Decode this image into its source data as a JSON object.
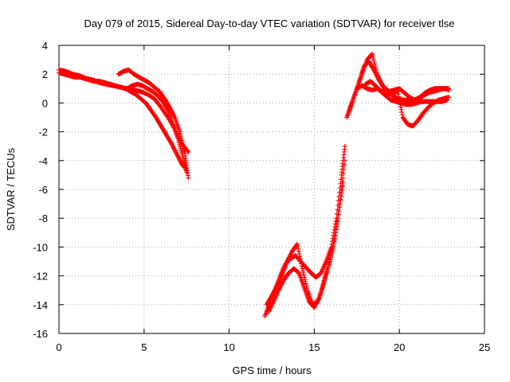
{
  "chart_data": {
    "type": "scatter",
    "title": "Day 079 of 2015, Sidereal Day-to-day VTEC variation (SDTVAR) for receiver tlse",
    "xlabel": "GPS time / hours",
    "ylabel": "SDTVAR / TECUs",
    "xlim": [
      0,
      25
    ],
    "ylim": [
      -16,
      4
    ],
    "xticks": [
      "0",
      "5",
      "10",
      "15",
      "20",
      "25"
    ],
    "yticks": [
      "4",
      "2",
      "0",
      "-2",
      "-4",
      "-6",
      "-8",
      "-10",
      "-12",
      "-14",
      "-16"
    ],
    "grid": true,
    "marker": "+",
    "color": "#ff0000",
    "series": [
      {
        "x": [
          0.0,
          0.3,
          0.6,
          0.9,
          1.2,
          1.5,
          1.8,
          2.1,
          2.4,
          2.7,
          3.0,
          3.3,
          3.6,
          3.9,
          4.2,
          4.5,
          4.8,
          5.1,
          5.4,
          5.7,
          6.0,
          6.3,
          6.6,
          6.9,
          7.2,
          7.4
        ],
        "y": [
          2.1,
          2.0,
          1.9,
          1.8,
          1.8,
          1.7,
          1.6,
          1.5,
          1.5,
          1.4,
          1.3,
          1.2,
          1.1,
          1.0,
          0.8,
          0.6,
          0.3,
          0.0,
          -0.5,
          -1.0,
          -1.6,
          -2.2,
          -2.8,
          -3.5,
          -4.2,
          -4.5
        ]
      },
      {
        "x": [
          0.0,
          0.4,
          0.8,
          1.2,
          1.6,
          2.0,
          2.4,
          2.8,
          3.2,
          3.6,
          4.0,
          4.4,
          4.8,
          5.2,
          5.6,
          6.0,
          6.4,
          6.8,
          7.2,
          7.6
        ],
        "y": [
          2.3,
          2.2,
          2.0,
          1.9,
          1.7,
          1.6,
          1.4,
          1.3,
          1.2,
          1.1,
          1.0,
          0.9,
          0.8,
          0.6,
          0.3,
          -0.3,
          -1.0,
          -1.8,
          -2.8,
          -3.4
        ]
      },
      {
        "x": [
          3.5,
          3.8,
          4.1,
          4.4,
          4.7,
          5.0,
          5.3,
          5.6,
          5.9,
          6.2,
          6.5,
          6.8,
          7.1,
          7.4,
          7.6
        ],
        "y": [
          2.0,
          2.2,
          2.3,
          2.0,
          1.8,
          1.6,
          1.4,
          1.1,
          0.8,
          0.3,
          -0.3,
          -1.0,
          -2.0,
          -3.5,
          -5.2
        ]
      },
      {
        "x": [
          4.0,
          4.3,
          4.6,
          4.9,
          5.2,
          5.5,
          5.8,
          6.1,
          6.4,
          6.7,
          7.0,
          7.3,
          7.5
        ],
        "y": [
          1.0,
          1.2,
          1.3,
          1.2,
          1.0,
          0.8,
          0.5,
          0.1,
          -0.5,
          -1.5,
          -2.5,
          -3.8,
          -4.8
        ]
      },
      {
        "x": [
          12.1,
          12.4,
          12.7,
          13.0,
          13.3,
          13.6,
          13.9,
          14.2,
          14.5,
          14.8,
          15.1,
          15.4,
          15.7,
          16.0,
          16.3,
          16.6,
          16.8
        ],
        "y": [
          -14.8,
          -13.8,
          -13.0,
          -12.0,
          -11.2,
          -10.8,
          -10.6,
          -11.0,
          -11.4,
          -11.8,
          -12.1,
          -11.8,
          -11.0,
          -10.0,
          -8.0,
          -5.0,
          -3.0
        ]
      },
      {
        "x": [
          12.2,
          12.5,
          12.8,
          13.1,
          13.4,
          13.7,
          14.0,
          14.3,
          14.6,
          14.9,
          15.2,
          15.5,
          15.8,
          16.1,
          16.4,
          16.7
        ],
        "y": [
          -14.0,
          -13.4,
          -12.7,
          -12.0,
          -11.0,
          -10.3,
          -9.8,
          -11.5,
          -13.0,
          -14.0,
          -13.8,
          -12.8,
          -11.5,
          -10.0,
          -8.0,
          -5.5
        ]
      },
      {
        "x": [
          12.3,
          12.6,
          12.9,
          13.2,
          13.5,
          13.8,
          14.1,
          14.4,
          14.7,
          15.0,
          15.3,
          15.6,
          15.9,
          16.2,
          16.5,
          16.8
        ],
        "y": [
          -14.5,
          -13.8,
          -13.0,
          -12.3,
          -11.8,
          -11.5,
          -11.8,
          -12.8,
          -13.8,
          -14.2,
          -13.5,
          -12.2,
          -11.0,
          -9.5,
          -7.0,
          -4.0
        ]
      },
      {
        "x": [
          16.9,
          17.2,
          17.5,
          17.8,
          18.1,
          18.4,
          18.7,
          19.0,
          19.3,
          19.6,
          19.9,
          20.2,
          20.5,
          20.8,
          21.1,
          21.4,
          21.7,
          22.0,
          22.3,
          22.6,
          22.9
        ],
        "y": [
          -1.0,
          0.0,
          1.0,
          2.0,
          3.0,
          3.4,
          2.0,
          1.2,
          0.8,
          0.5,
          0.3,
          0.2,
          0.2,
          0.2,
          0.3,
          0.5,
          0.7,
          0.8,
          0.9,
          1.0,
          1.0
        ]
      },
      {
        "x": [
          17.0,
          17.3,
          17.6,
          17.9,
          18.2,
          18.5,
          18.8,
          19.1,
          19.4,
          19.7,
          20.0,
          20.3,
          20.6,
          20.9,
          21.2,
          21.5,
          21.8,
          22.1,
          22.4,
          22.7,
          22.9
        ],
        "y": [
          -0.8,
          0.3,
          1.3,
          2.5,
          2.9,
          2.3,
          1.6,
          1.1,
          0.8,
          0.9,
          1.0,
          0.7,
          0.4,
          0.2,
          0.4,
          0.7,
          0.9,
          1.0,
          1.0,
          1.0,
          0.9
        ]
      },
      {
        "x": [
          17.5,
          17.8,
          18.1,
          18.4,
          18.7,
          19.0,
          19.3,
          19.6,
          19.9,
          20.2,
          20.5,
          20.8,
          21.1,
          21.4,
          21.7,
          22.0,
          22.3,
          22.6,
          22.9
        ],
        "y": [
          1.0,
          1.2,
          1.0,
          0.9,
          1.0,
          0.8,
          0.6,
          0.7,
          0.8,
          -1.0,
          -1.5,
          -1.6,
          -1.2,
          -0.7,
          -0.3,
          0.0,
          0.2,
          0.3,
          0.4
        ]
      },
      {
        "x": [
          18.0,
          18.3,
          18.6,
          18.9,
          19.2,
          19.5,
          19.8,
          20.1,
          20.4,
          20.7,
          21.0,
          21.3,
          21.6,
          21.9,
          22.2,
          22.5,
          22.8
        ],
        "y": [
          1.3,
          1.5,
          1.2,
          0.8,
          0.5,
          0.2,
          0.1,
          0.0,
          -0.1,
          -0.1,
          0.0,
          0.1,
          0.1,
          0.1,
          0.1,
          0.1,
          0.2
        ]
      }
    ]
  }
}
